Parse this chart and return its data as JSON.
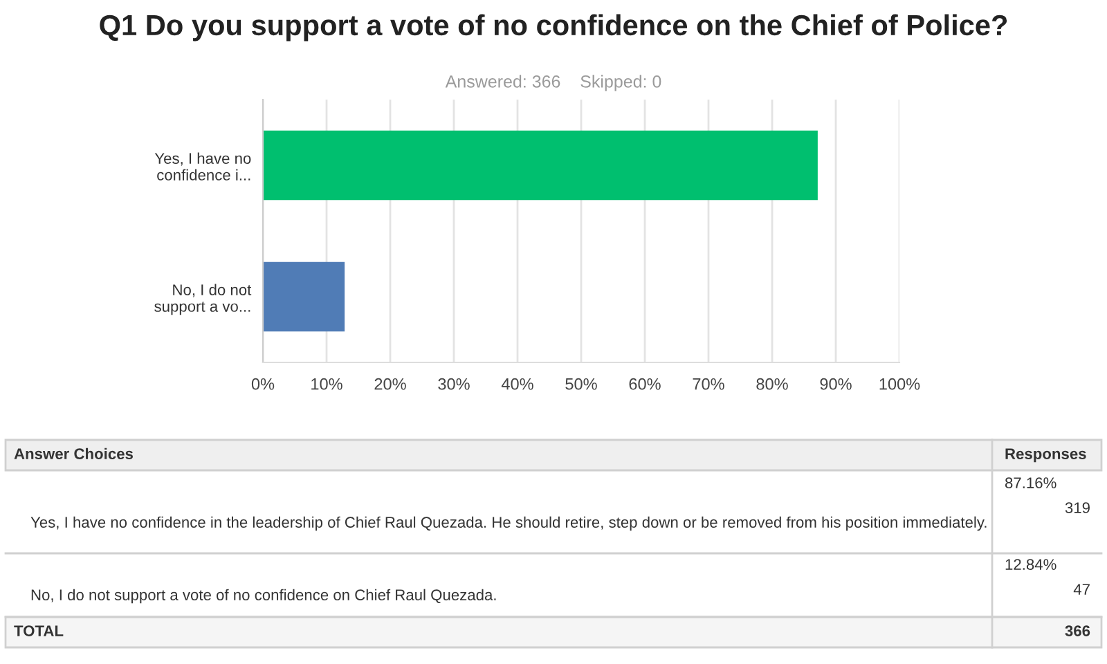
{
  "chart_data": {
    "type": "bar",
    "orientation": "horizontal",
    "title": "Q1 Do you support a vote of no confidence on the Chief of Police?",
    "subtitle": "Answered: 366    Skipped: 0",
    "categories": [
      "Yes, I have no\nconfidence i...",
      "No, I do not\nsupport a vo..."
    ],
    "values": [
      87.16,
      12.84
    ],
    "colors": [
      "#00bf6f",
      "#507cb6"
    ],
    "xlim": [
      0,
      100
    ],
    "xticks": [
      {
        "value": 0,
        "label": "0%"
      },
      {
        "value": 10,
        "label": "10%"
      },
      {
        "value": 20,
        "label": "20%"
      },
      {
        "value": 30,
        "label": "30%"
      },
      {
        "value": 40,
        "label": "40%"
      },
      {
        "value": 50,
        "label": "50%"
      },
      {
        "value": 60,
        "label": "60%"
      },
      {
        "value": 70,
        "label": "70%"
      },
      {
        "value": 80,
        "label": "80%"
      },
      {
        "value": 90,
        "label": "90%"
      },
      {
        "value": 100,
        "label": "100%"
      }
    ],
    "grid": "x",
    "annotations": [
      "Answer Choices",
      "Responses",
      "Yes, I have no confidence in the leadership of Chief Raul Quezada. He should retire, step down or be removed from his position immediately.",
      "No, I do not support a vote of no confidence on Chief Raul Quezada.",
      "319",
      "47",
      "TOTAL",
      "366",
      "87.16%",
      "12.84%"
    ]
  }
}
